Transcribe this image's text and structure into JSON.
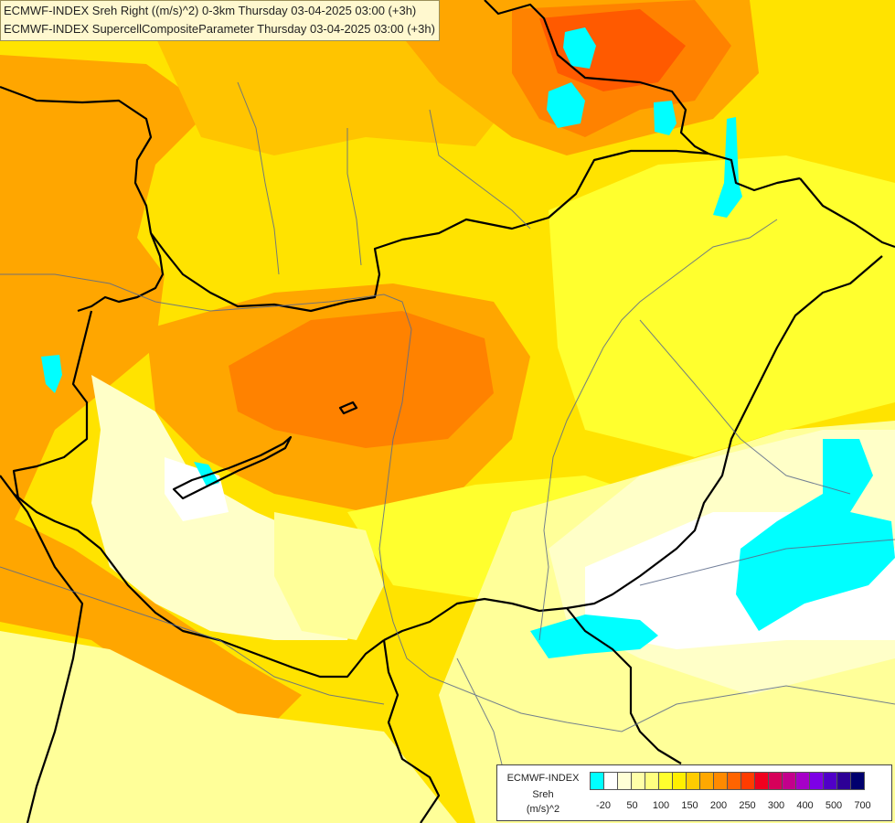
{
  "header": {
    "line1": "ECMWF-INDEX Sreh Right ((m/s)^2) 0-3km Thursday 03-04-2025 03:00 (+3h)",
    "line2": "ECMWF-INDEX SupercellCompositeParameter Thursday 03-04-2025 03:00 (+3h)"
  },
  "legend": {
    "model": "ECMWF-INDEX",
    "parameter": "Sreh",
    "unit": "(m/s)^2",
    "colors": [
      "#00ffff",
      "#ffffff",
      "#ffffd6",
      "#ffffa8",
      "#ffff80",
      "#ffff2e",
      "#ffef00",
      "#ffcc00",
      "#ffa800",
      "#ff8a00",
      "#ff6400",
      "#ff3c00",
      "#f0001e",
      "#d6005a",
      "#c3008c",
      "#a600c8",
      "#7d00e6",
      "#5000c8",
      "#2d0096",
      "#00006e"
    ],
    "ticks": [
      "-20",
      "50",
      "100",
      "150",
      "200",
      "250",
      "300",
      "400",
      "500",
      "700"
    ]
  },
  "map": {
    "palette": {
      "cyan": "#00ffff",
      "white": "#ffffff",
      "pale_yellow": "#ffffc8",
      "light_yellow": "#ffff99",
      "yellow": "#ffff2e",
      "gold": "#ffe300",
      "light_orange": "#ffc400",
      "orange": "#ffa600",
      "dark_orange": "#ff8200",
      "red_orange": "#ff5a00"
    }
  }
}
